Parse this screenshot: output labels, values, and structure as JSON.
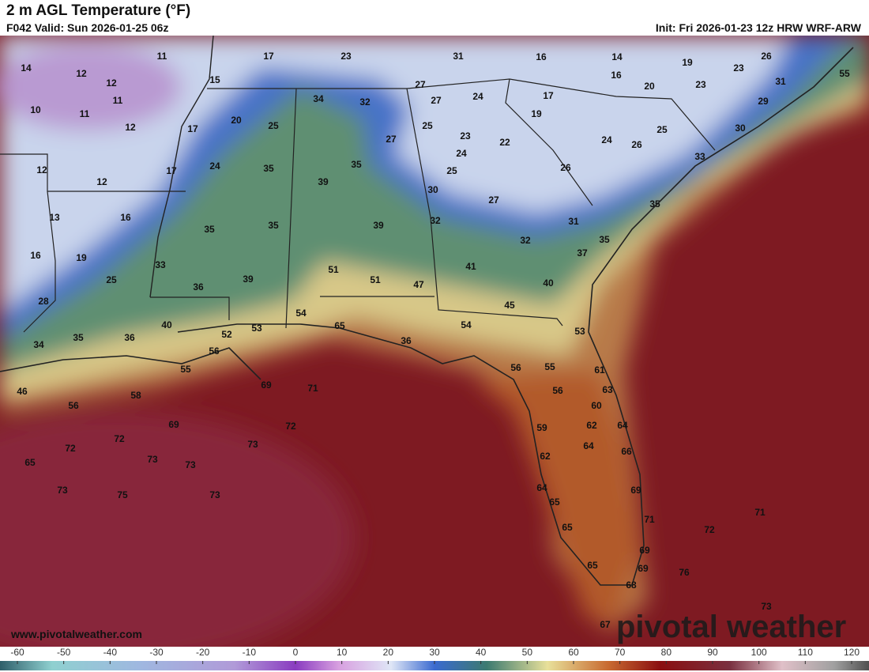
{
  "header": {
    "title": "2 m AGL Temperature (°F)",
    "valid": "F042 Valid: Sun 2026-01-25 06z",
    "init": "Init: Fri 2026-01-23 12z HRW WRF-ARW"
  },
  "map": {
    "labels": [
      "14",
      "12",
      "12",
      "11",
      "11",
      "10",
      "11",
      "12",
      "15",
      "17",
      "23",
      "31",
      "16",
      "14",
      "19",
      "26",
      "23",
      "55",
      "31",
      "16",
      "20",
      "23",
      "29",
      "27",
      "27",
      "24",
      "17",
      "34",
      "32",
      "20",
      "25",
      "17",
      "19",
      "25",
      "25",
      "30",
      "27",
      "23",
      "22",
      "24",
      "26",
      "12",
      "24",
      "35",
      "35",
      "24",
      "25",
      "26",
      "33",
      "17",
      "12",
      "39",
      "30",
      "27",
      "35",
      "13",
      "16",
      "35",
      "35",
      "39",
      "32",
      "31",
      "32",
      "35",
      "16",
      "19",
      "33",
      "37",
      "51",
      "51",
      "47",
      "41",
      "40",
      "25",
      "36",
      "39",
      "28",
      "45",
      "54",
      "40",
      "53",
      "65",
      "54",
      "53",
      "52",
      "35",
      "36",
      "34",
      "56",
      "36",
      "56",
      "55",
      "61",
      "55",
      "69",
      "71",
      "63",
      "56",
      "46",
      "58",
      "56",
      "60",
      "69",
      "72",
      "62",
      "64",
      "59",
      "72",
      "72",
      "73",
      "64",
      "66",
      "62",
      "65",
      "73",
      "73",
      "64",
      "69",
      "73",
      "75",
      "73",
      "65",
      "71",
      "71",
      "72",
      "65",
      "69",
      "69",
      "65",
      "76",
      "68",
      "73",
      "67"
    ]
  },
  "footer": {
    "url": "www.pivotalweather.com",
    "logo": "pivotal weather"
  },
  "colorbar": {
    "ticks": [
      -60,
      -50,
      -40,
      -30,
      -20,
      -10,
      0,
      10,
      20,
      30,
      40,
      50,
      60,
      70,
      80,
      90,
      100,
      110,
      120
    ]
  }
}
